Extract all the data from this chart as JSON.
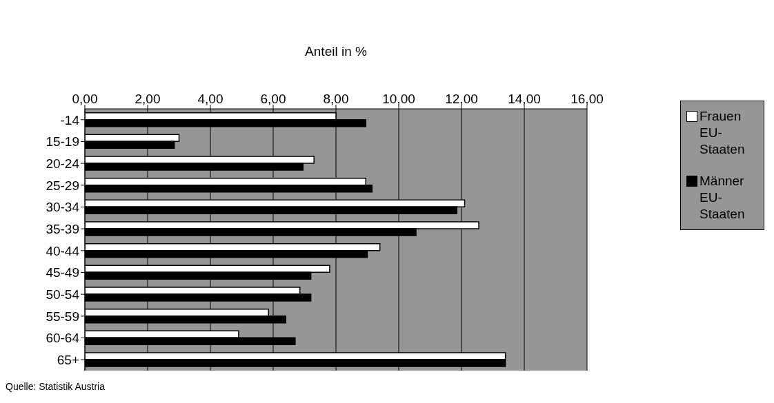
{
  "chart_data": {
    "type": "bar",
    "orientation": "horizontal",
    "xlabel": "Anteil in %",
    "categories": [
      "-14",
      "15-19",
      "20-24",
      "25-29",
      "30-34",
      "35-39",
      "40-44",
      "45-49",
      "50-54",
      "55-59",
      "60-64",
      "65+"
    ],
    "series": [
      {
        "name": "Frauen EU-Staaten",
        "color": "#ffffff",
        "values": [
          8.0,
          3.0,
          7.3,
          8.95,
          12.1,
          12.55,
          9.4,
          7.8,
          6.85,
          5.85,
          4.9,
          13.4
        ]
      },
      {
        "name": "Männer EU-Staaten",
        "color": "#000000",
        "values": [
          8.95,
          2.85,
          6.95,
          9.15,
          11.85,
          10.55,
          9.0,
          7.2,
          7.2,
          6.4,
          6.7,
          13.4
        ]
      }
    ],
    "xlim": [
      0,
      16
    ],
    "xticks": [
      {
        "value": 0,
        "label": "0,00"
      },
      {
        "value": 2,
        "label": "2,00"
      },
      {
        "value": 4,
        "label": "4,00"
      },
      {
        "value": 6,
        "label": "6,00"
      },
      {
        "value": 8,
        "label": "8,00"
      },
      {
        "value": 10,
        "label": "10,00"
      },
      {
        "value": 12,
        "label": "12,00"
      },
      {
        "value": 14,
        "label": "14,00"
      },
      {
        "value": 16,
        "label": "16,00"
      }
    ],
    "grid": "x",
    "legend": "right",
    "annotations": [
      "Quelle: Statistik Austria"
    ]
  }
}
